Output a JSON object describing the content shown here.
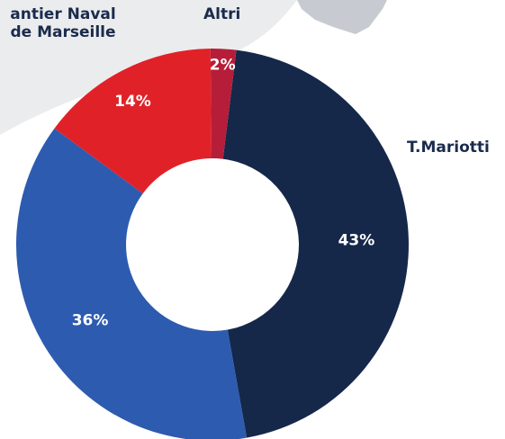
{
  "chart_data": {
    "type": "pie",
    "title": "",
    "donut": true,
    "slices": [
      {
        "label": "T.Mariotti",
        "value": 43,
        "value_label": "43%",
        "color": "#15284a"
      },
      {
        "label": "",
        "value": 36,
        "value_label": "36%",
        "color": "#2d5bb0"
      },
      {
        "label": "Chantier Naval de Marseille",
        "value": 14,
        "value_label": "14%",
        "color": "#e02228"
      },
      {
        "label": "Altri",
        "value": 2,
        "value_label": "2%",
        "color": "#b51d38"
      }
    ]
  },
  "labels": {
    "chantier_line1": "antier Naval",
    "chantier_line2": "de Marseille",
    "altri": "Altri",
    "mariotti": "T.Mariotti"
  },
  "colors": {
    "map_background": "#e9eaec",
    "map_land": "#c9ccd1",
    "text": "#1a2b4c"
  }
}
